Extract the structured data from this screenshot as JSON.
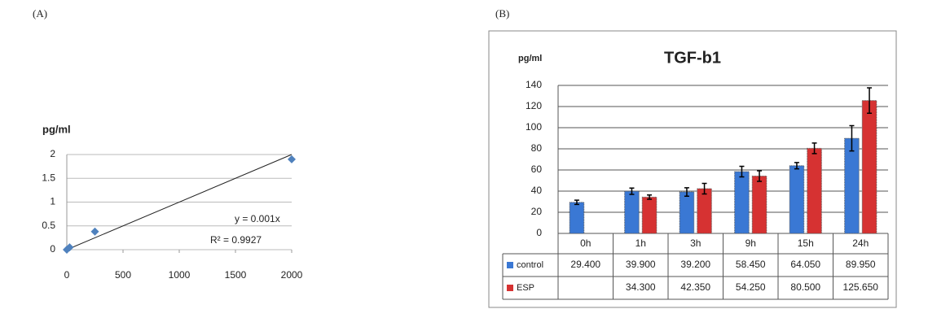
{
  "chart_data": [
    {
      "type": "scatter",
      "panel_label": "(A)",
      "y_label": "pg/ml",
      "x": [
        0,
        25,
        250,
        2000
      ],
      "values": [
        0,
        0.05,
        0.38,
        1.9
      ],
      "color": "#4f81bd",
      "xlim": [
        0,
        2000
      ],
      "xticks": [
        0,
        500,
        1000,
        1500,
        2000
      ],
      "ylim": [
        0,
        2
      ],
      "yticks": [
        0,
        0.5,
        1,
        1.5,
        2
      ],
      "grid": true,
      "trendline": {
        "slope": 0.001,
        "label": "y = 0.001x",
        "r2_label": "R² = 0.9927"
      }
    },
    {
      "type": "bar",
      "panel_label": "(B)",
      "title": "TGF-b1",
      "y_label": "pg/ml",
      "categories": [
        "0h",
        "1h",
        "3h",
        "9h",
        "15h",
        "24h"
      ],
      "series": [
        {
          "name": "control",
          "color": "#3a78d4",
          "values": [
            29.4,
            39.9,
            39.2,
            58.45,
            64.05,
            89.95
          ],
          "value_labels": [
            "29.400",
            "39.900",
            "39.200",
            "58.450",
            "64.050",
            "89.950"
          ],
          "errors": [
            2,
            3,
            4,
            5,
            3,
            12
          ]
        },
        {
          "name": "ESP",
          "color": "#d63232",
          "values": [
            null,
            34.3,
            42.35,
            54.25,
            80.5,
            125.65
          ],
          "value_labels": [
            null,
            "34.300",
            "42.350",
            "54.250",
            "80.500",
            "125.650"
          ],
          "errors": [
            null,
            2,
            5,
            5,
            5,
            12
          ]
        }
      ],
      "ylim": [
        0,
        140
      ],
      "yticks": [
        0,
        20,
        40,
        60,
        80,
        100,
        120,
        140
      ],
      "grid": true
    }
  ]
}
